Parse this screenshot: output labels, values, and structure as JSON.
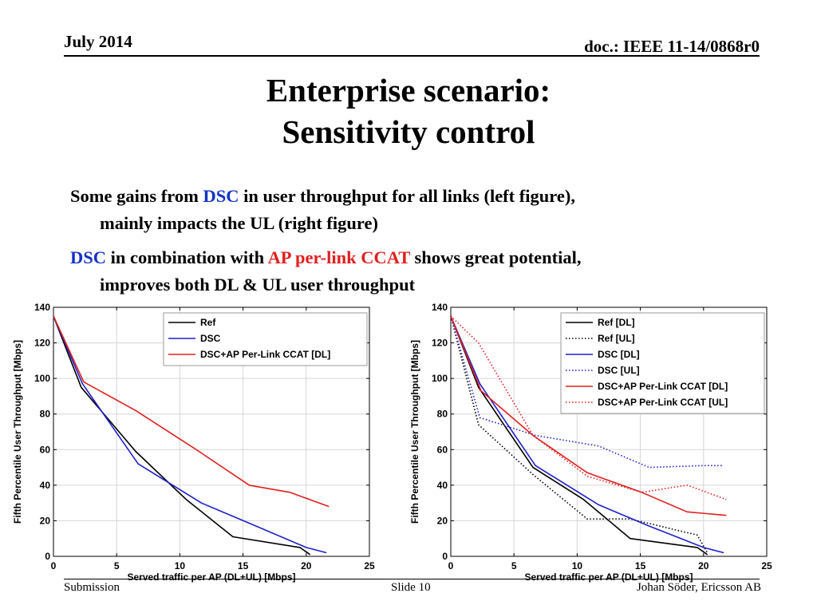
{
  "header": {
    "date": "July 2014",
    "doc_id": "doc.: IEEE 11-14/0868r0"
  },
  "title": {
    "line1": "Enterprise scenario:",
    "line2": "Sensitivity control"
  },
  "bullets": [
    {
      "part1": "Some gains from ",
      "hl1": "DSC",
      "part2": " in user throughput for all links (left figure),",
      "cont": "mainly impacts the UL (right figure)"
    },
    {
      "hl1": "DSC",
      "part1": " in combination with ",
      "hl2": "AP per-link CCAT",
      "part2": " shows great potential,",
      "cont": "improves both DL & UL user throughput"
    }
  ],
  "colors": {
    "ref": "#000000",
    "dsc": "#1f1fcc",
    "dsc_ap": "#e0201f",
    "highlight_blue": "#1433c7",
    "highlight_red": "#e0201f"
  },
  "chart_data": [
    {
      "type": "line",
      "xlabel": "Served traffic per AP (DL+UL) [Mbps]",
      "ylabel": "Fifth Percentile User Throughput [Mbps]",
      "xlim": [
        0,
        25
      ],
      "ylim": [
        0,
        140
      ],
      "xticks": [
        0,
        5,
        10,
        15,
        20,
        25
      ],
      "yticks": [
        0,
        20,
        40,
        60,
        80,
        100,
        120,
        140
      ],
      "grid": true,
      "legend_position": "top-right",
      "series": [
        {
          "name": "Ref",
          "color": "#000000",
          "style": "solid",
          "x": [
            0,
            2.2,
            6.5,
            10.5,
            14.2,
            19.5,
            20.3
          ],
          "y": [
            135,
            95,
            59,
            32,
            11,
            5,
            1
          ]
        },
        {
          "name": "DSC",
          "color": "#1f1fcc",
          "style": "solid",
          "x": [
            0,
            2.3,
            6.7,
            11.7,
            15.7,
            20.0,
            21.6
          ],
          "y": [
            135,
            97,
            52,
            30,
            18,
            5,
            2
          ]
        },
        {
          "name": "DSC+AP Per-Link CCAT [DL]",
          "color": "#e0201f",
          "style": "solid",
          "x": [
            0,
            2.4,
            6.5,
            11.3,
            15.5,
            18.7,
            21.8
          ],
          "y": [
            135,
            98,
            82,
            60,
            40,
            36,
            28
          ]
        }
      ]
    },
    {
      "type": "line",
      "xlabel": "Served traffic per AP (DL+UL) [Mbps]",
      "ylabel": "Fifth Percentile User Throughput [Mbps]",
      "xlim": [
        0,
        25
      ],
      "ylim": [
        0,
        140
      ],
      "xticks": [
        0,
        5,
        10,
        15,
        20,
        25
      ],
      "yticks": [
        0,
        20,
        40,
        60,
        80,
        100,
        120,
        140
      ],
      "grid": true,
      "legend_position": "top-right",
      "series": [
        {
          "name": "Ref [DL]",
          "color": "#000000",
          "style": "solid",
          "x": [
            0,
            2.2,
            6.5,
            10.5,
            14.2,
            19.5,
            20.3
          ],
          "y": [
            135,
            95,
            50,
            32,
            10,
            5,
            1
          ]
        },
        {
          "name": "Ref [UL]",
          "color": "#000000",
          "style": "dotted",
          "x": [
            0,
            2.2,
            6.5,
            10.8,
            14.2,
            19.5,
            20.3
          ],
          "y": [
            135,
            74,
            46,
            21,
            21,
            12,
            2
          ]
        },
        {
          "name": "DSC [DL]",
          "color": "#1f1fcc",
          "style": "solid",
          "x": [
            0,
            2.3,
            6.7,
            11.7,
            15.7,
            20.0,
            21.6
          ],
          "y": [
            135,
            97,
            51,
            29,
            17,
            5,
            2
          ]
        },
        {
          "name": "DSC [UL]",
          "color": "#1f1fcc",
          "style": "dotted",
          "x": [
            0,
            2.3,
            6.7,
            11.7,
            15.7,
            20.0,
            21.6
          ],
          "y": [
            135,
            78,
            68,
            62,
            50,
            51,
            51
          ]
        },
        {
          "name": "DSC+AP Per-Link CCAT [DL]",
          "color": "#e0201f",
          "style": "solid",
          "x": [
            0,
            2.4,
            6.5,
            10.8,
            15.1,
            18.7,
            21.8
          ],
          "y": [
            135,
            93,
            68,
            47,
            36,
            25,
            23
          ]
        },
        {
          "name": "DSC+AP Per-Link CCAT [UL]",
          "color": "#e0201f",
          "style": "dotted",
          "x": [
            0,
            2.2,
            6.5,
            10.8,
            15.1,
            18.7,
            21.8
          ],
          "y": [
            135,
            120,
            68,
            45,
            36,
            40,
            32
          ]
        }
      ]
    }
  ],
  "footer": {
    "left": "Submission",
    "center": "Slide 10",
    "right": "Johan Söder, Ericsson AB"
  }
}
